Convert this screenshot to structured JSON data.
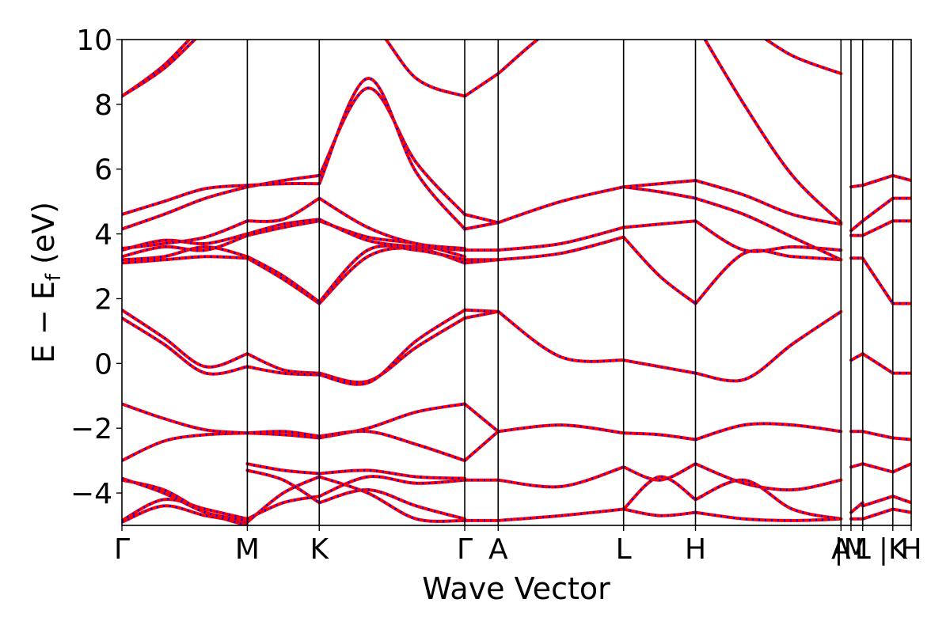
{
  "chart_data": {
    "type": "line",
    "title": "",
    "xlabel": "Wave Vector",
    "ylabel_main": "E − E",
    "ylabel_sub": "f",
    "ylabel_unit": " (eV)",
    "ylim": [
      -5,
      10
    ],
    "yticks": [
      -4,
      -2,
      0,
      2,
      4,
      6,
      8,
      10
    ],
    "ytick_labels": [
      "−4",
      "−2",
      "0",
      "2",
      "4",
      "6",
      "8",
      "10"
    ],
    "xlim": [
      0,
      4.72
    ],
    "high_symmetry_points": [
      {
        "label": "Γ",
        "x": 0.0
      },
      {
        "label": "M",
        "x": 0.75
      },
      {
        "label": "K",
        "x": 1.18
      },
      {
        "label": "Γ",
        "x": 2.05
      },
      {
        "label": "A",
        "x": 2.25
      },
      {
        "label": "L",
        "x": 3.0
      },
      {
        "label": "H",
        "x": 3.43
      },
      {
        "label": "A",
        "x": 4.3
      },
      {
        "label": "|M",
        "x": 4.36
      },
      {
        "label": "L",
        "x": 4.43
      },
      {
        "label": "|K",
        "x": 4.61
      },
      {
        "label": "H",
        "x": 4.72
      }
    ],
    "legend": "none",
    "grid": false,
    "series_styles": [
      {
        "color": "#ff0000",
        "style": "solid"
      },
      {
        "color": "#0000ff",
        "style": "dotted"
      }
    ],
    "segments": [
      {
        "x_start": 0.0,
        "x_end": 0.75,
        "bands": [
          [
            -4.9,
            -4.4,
            -4.7,
            -4.9
          ],
          [
            -4.85,
            -4.2,
            -4.5,
            -4.8
          ],
          [
            -3.6,
            -3.9,
            -4.6,
            -5.0
          ],
          [
            -3.55,
            -4.0,
            -4.6,
            -4.85
          ],
          [
            -3.0,
            -2.4,
            -2.2,
            -2.15
          ],
          [
            -1.25,
            -1.7,
            -2.05,
            -2.15
          ],
          [
            1.4,
            0.6,
            -0.3,
            -0.1
          ],
          [
            1.65,
            0.8,
            -0.1,
            0.3
          ],
          [
            3.1,
            3.2,
            3.3,
            3.25
          ],
          [
            3.2,
            3.3,
            3.6,
            3.3
          ],
          [
            3.3,
            3.6,
            3.5,
            3.95
          ],
          [
            3.5,
            3.8,
            3.7,
            4.0
          ],
          [
            3.55,
            3.7,
            3.9,
            4.4
          ],
          [
            4.15,
            4.6,
            5.1,
            5.45
          ],
          [
            4.6,
            5.0,
            5.4,
            5.5
          ],
          [
            8.25,
            9.2,
            10.5,
            11.5
          ],
          [
            8.25,
            9.1,
            10.3,
            11.3
          ]
        ]
      },
      {
        "x_start": 0.75,
        "x_end": 1.18,
        "bands": [
          [
            -4.9,
            -4.0,
            -3.5
          ],
          [
            -4.8,
            -4.3,
            -4.1
          ],
          [
            -3.1,
            -3.3,
            -3.4
          ],
          [
            -3.3,
            -3.6,
            -4.3
          ],
          [
            -2.15,
            -2.2,
            -2.3
          ],
          [
            -2.15,
            -2.1,
            -2.25
          ],
          [
            0.3,
            -0.2,
            -0.3
          ],
          [
            -0.1,
            -0.3,
            -0.35
          ],
          [
            3.25,
            2.6,
            1.85
          ],
          [
            3.3,
            2.7,
            1.9
          ],
          [
            3.95,
            4.2,
            4.4
          ],
          [
            4.0,
            4.3,
            4.45
          ],
          [
            4.4,
            4.45,
            5.1
          ],
          [
            5.45,
            5.65,
            5.8
          ],
          [
            5.5,
            5.55,
            5.55
          ]
        ]
      },
      {
        "x_start": 1.18,
        "x_end": 2.05,
        "bands": [
          [
            -3.5,
            -4.0,
            -4.8,
            -4.85
          ],
          [
            -4.1,
            -3.5,
            -3.7,
            -3.6
          ],
          [
            -3.4,
            -3.3,
            -3.5,
            -3.55
          ],
          [
            -4.3,
            -3.9,
            -4.4,
            -4.8
          ],
          [
            -2.3,
            -2.0,
            -1.5,
            -1.25
          ],
          [
            -2.25,
            -2.1,
            -2.5,
            -3.0
          ],
          [
            -0.3,
            -0.55,
            0.5,
            1.4
          ],
          [
            -0.35,
            -0.6,
            0.7,
            1.65
          ],
          [
            1.85,
            3.3,
            3.55,
            3.1
          ],
          [
            1.9,
            3.5,
            3.5,
            3.2
          ],
          [
            4.4,
            3.9,
            3.7,
            3.3
          ],
          [
            4.45,
            3.8,
            3.6,
            3.5
          ],
          [
            5.1,
            4.2,
            3.7,
            3.55
          ],
          [
            5.8,
            8.5,
            6.2,
            4.6
          ],
          [
            5.55,
            8.8,
            5.9,
            4.15
          ],
          [
            10.5,
            10.6,
            8.8,
            8.25
          ]
        ]
      },
      {
        "x_start": 2.05,
        "x_end": 2.25,
        "bands": [
          [
            -4.85,
            -4.85
          ],
          [
            -3.6,
            -3.6
          ],
          [
            -3.0,
            -2.1
          ],
          [
            -1.25,
            -2.1
          ],
          [
            1.4,
            1.6
          ],
          [
            1.65,
            1.6
          ],
          [
            3.1,
            3.2
          ],
          [
            3.2,
            3.2
          ],
          [
            3.5,
            3.5
          ],
          [
            4.15,
            4.35
          ],
          [
            4.6,
            4.35
          ],
          [
            8.25,
            8.95
          ]
        ]
      },
      {
        "x_start": 2.25,
        "x_end": 3.0,
        "bands": [
          [
            -4.85,
            -4.7,
            -4.5
          ],
          [
            -3.6,
            -3.8,
            -3.2
          ],
          [
            -2.1,
            -1.9,
            -2.15
          ],
          [
            1.6,
            0.2,
            0.1
          ],
          [
            3.2,
            3.4,
            3.9
          ],
          [
            3.5,
            3.7,
            4.2
          ],
          [
            4.35,
            5.0,
            5.45
          ],
          [
            8.95,
            10.5,
            11.0
          ]
        ]
      },
      {
        "x_start": 3.0,
        "x_end": 3.43,
        "bands": [
          [
            -4.5,
            -4.7,
            -4.6
          ],
          [
            -3.2,
            -3.6,
            -3.1
          ],
          [
            -4.5,
            -3.5,
            -4.2
          ],
          [
            -2.15,
            -2.2,
            -2.35
          ],
          [
            0.1,
            -0.1,
            -0.3
          ],
          [
            3.9,
            2.7,
            1.85
          ],
          [
            4.2,
            4.3,
            4.4
          ],
          [
            5.45,
            5.55,
            5.65
          ],
          [
            5.45,
            5.3,
            5.1
          ]
        ]
      },
      {
        "x_start": 3.43,
        "x_end": 4.3,
        "bands": [
          [
            -4.6,
            -4.8,
            -4.85,
            -4.8
          ],
          [
            -3.1,
            -3.7,
            -3.9,
            -3.6
          ],
          [
            -4.2,
            -3.6,
            -4.5,
            -4.8
          ],
          [
            -2.35,
            -1.9,
            -1.9,
            -2.1
          ],
          [
            -0.3,
            -0.5,
            0.6,
            1.6
          ],
          [
            1.85,
            3.4,
            3.3,
            3.2
          ],
          [
            4.4,
            3.5,
            3.6,
            3.5
          ],
          [
            5.65,
            5.2,
            4.6,
            4.3
          ],
          [
            5.1,
            4.6,
            3.9,
            3.2
          ],
          [
            10.5,
            8.0,
            5.8,
            4.35
          ],
          [
            10.8,
            10.4,
            9.5,
            8.95
          ]
        ]
      },
      {
        "x_start": 4.36,
        "x_end": 4.43,
        "bands": [
          [
            -4.8,
            -4.8
          ],
          [
            -4.6,
            -4.3
          ],
          [
            -3.2,
            -3.1
          ],
          [
            -2.1,
            -2.1
          ],
          [
            0.1,
            0.3
          ],
          [
            3.25,
            3.25
          ],
          [
            3.95,
            3.95
          ],
          [
            4.1,
            4.4
          ],
          [
            5.45,
            5.5
          ]
        ]
      },
      {
        "x_start": 4.43,
        "x_end": 4.61,
        "bands": [
          [
            -4.8,
            -4.5
          ],
          [
            -4.4,
            -4.1
          ],
          [
            -3.1,
            -3.35
          ],
          [
            -2.1,
            -2.3
          ],
          [
            0.3,
            -0.3
          ],
          [
            3.25,
            1.85
          ],
          [
            3.95,
            4.4
          ],
          [
            4.4,
            5.1
          ],
          [
            5.5,
            5.8
          ]
        ]
      },
      {
        "x_start": 4.61,
        "x_end": 4.72,
        "bands": [
          [
            -4.5,
            -4.6
          ],
          [
            -4.1,
            -4.3
          ],
          [
            -3.35,
            -3.1
          ],
          [
            -2.3,
            -2.35
          ],
          [
            -0.3,
            -0.3
          ],
          [
            1.85,
            1.85
          ],
          [
            4.4,
            4.4
          ],
          [
            5.1,
            5.1
          ],
          [
            5.8,
            5.65
          ]
        ]
      }
    ]
  }
}
